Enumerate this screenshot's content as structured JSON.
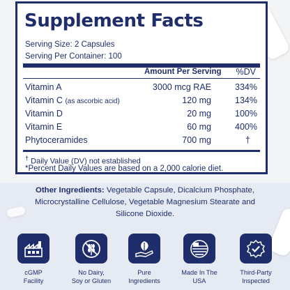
{
  "facts": {
    "title": "Supplement Facts",
    "serving_size": "Serving Size: 2 Capsules",
    "servings_per_container": "Serving Per Container: 100",
    "header_amount": "Amount Per Serving",
    "header_dv": "%DV",
    "rows": [
      {
        "name": "Vitamin A",
        "note": "",
        "amount": "3000 mcg RAE",
        "dv": "334%"
      },
      {
        "name": "Vitamin C",
        "note": "(as ascorbic acid)",
        "amount": "120 mg",
        "dv": "134%"
      },
      {
        "name": "Vitamin D",
        "note": "",
        "amount": "20 mg",
        "dv": "100%"
      },
      {
        "name": "Vitamin E",
        "note": "",
        "amount": "60 mg",
        "dv": "400%"
      },
      {
        "name": "Phytoceramides",
        "note": "",
        "amount": "700 mg",
        "dv": "†"
      }
    ],
    "footnote_dv": "Daily Value (DV) not established",
    "footnote_dv_marker": "†",
    "footnote_percent": "*Percent Daily Values are based on a 2,000 calorie diet."
  },
  "ingredients": {
    "label": "Other Ingredients:",
    "text": "Vegetable Capsule, Dicalcium Phosphate, Microcrystalline Cellulose, Vegetable Magnesium Stearate and Silicone Dioxide."
  },
  "badges": [
    {
      "icon": "factory-icon",
      "label_line1": "cGMP",
      "label_line2": "Facility"
    },
    {
      "icon": "no-wheat-icon",
      "label_line1": "No Dairy,",
      "label_line2": "Soy or Gluten"
    },
    {
      "icon": "leaf-hand-icon",
      "label_line1": "Pure",
      "label_line2": "Ingredients"
    },
    {
      "icon": "usa-flag-icon",
      "label_line1": "Made In The",
      "label_line2": "USA"
    },
    {
      "icon": "verified-seal-icon",
      "label_line1": "Third-Party",
      "label_line2": "Inspected"
    }
  ],
  "colors": {
    "navy": "#1f2e6b",
    "background_top": "#f3f4f6",
    "background_bottom": "#e6eaf3"
  }
}
